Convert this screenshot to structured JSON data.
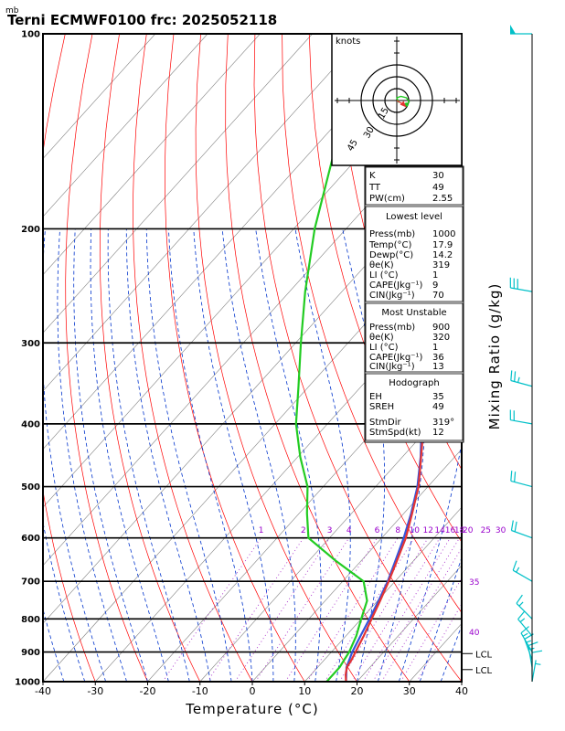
{
  "chart_data": {
    "type": "skew-t",
    "unit_label": "mb",
    "title": "Terni ECMWF0100  frc: 2025052118",
    "xlabel": "Temperature (°C)",
    "ylabel": "Mixing Ratio (g/kg)",
    "xlim": [
      -40,
      40
    ],
    "ylim": [
      1000,
      100
    ],
    "x_ticks": [
      "-40",
      "-30",
      "-20",
      "-10",
      "0",
      "10",
      "20",
      "30",
      "40"
    ],
    "pressure_ticks": [
      "100",
      "200",
      "300",
      "400",
      "500",
      "600",
      "700",
      "800",
      "900",
      "1000"
    ],
    "mixing_ratio_labels": [
      "1",
      "2",
      "3",
      "4",
      "6",
      "8",
      "10",
      "12",
      "14",
      "16",
      "18",
      "20",
      "25",
      "30"
    ],
    "right_labels": [
      "35",
      "40"
    ],
    "lcl_labels": [
      "LCL",
      "LCL"
    ],
    "parcel": [
      {
        "p": 1000,
        "t": 17.9
      },
      {
        "p": 950,
        "t": 15.5
      },
      {
        "p": 900,
        "t": 14.0
      },
      {
        "p": 850,
        "t": 12.8
      },
      {
        "p": 800,
        "t": 11.6
      },
      {
        "p": 750,
        "t": 10.2
      },
      {
        "p": 700,
        "t": 8.6
      },
      {
        "p": 650,
        "t": 6.5
      },
      {
        "p": 600,
        "t": 4.2
      },
      {
        "p": 550,
        "t": 1.4
      },
      {
        "p": 500,
        "t": -2.0
      },
      {
        "p": 450,
        "t": -6.5
      },
      {
        "p": 400,
        "t": -12.0
      },
      {
        "p": 350,
        "t": -18.5
      },
      {
        "p": 300,
        "t": -26.0
      },
      {
        "p": 250,
        "t": -35.0
      },
      {
        "p": 200,
        "t": -45.0
      },
      {
        "p": 150,
        "t": -57.0
      },
      {
        "p": 110,
        "t": -69.0
      }
    ],
    "series": [
      {
        "name": "Temperature",
        "color": "#e33333",
        "points": [
          {
            "p": 1000,
            "t": 17.9
          },
          {
            "p": 975,
            "t": 16.6
          },
          {
            "p": 950,
            "t": 15.6
          },
          {
            "p": 925,
            "t": 15.2
          },
          {
            "p": 900,
            "t": 14.6
          },
          {
            "p": 850,
            "t": 13.4
          },
          {
            "p": 800,
            "t": 12.0
          },
          {
            "p": 750,
            "t": 10.5
          },
          {
            "p": 700,
            "t": 8.8
          },
          {
            "p": 650,
            "t": 6.8
          },
          {
            "p": 600,
            "t": 4.6
          },
          {
            "p": 550,
            "t": 1.6
          },
          {
            "p": 500,
            "t": -1.8
          },
          {
            "p": 450,
            "t": -6.4
          },
          {
            "p": 400,
            "t": -11.6
          },
          {
            "p": 350,
            "t": -18.0
          },
          {
            "p": 300,
            "t": -25.4
          },
          {
            "p": 250,
            "t": -34.5
          },
          {
            "p": 225,
            "t": -38.0
          },
          {
            "p": 200,
            "t": -38.0
          },
          {
            "p": 175,
            "t": -40.0
          },
          {
            "p": 150,
            "t": -43.0
          },
          {
            "p": 125,
            "t": -46.5
          },
          {
            "p": 100,
            "t": -52.0
          }
        ]
      },
      {
        "name": "Dewpoint",
        "color": "#22cc22",
        "points": [
          {
            "p": 1000,
            "t": 14.2
          },
          {
            "p": 950,
            "t": 14.2
          },
          {
            "p": 925,
            "t": 13.8
          },
          {
            "p": 900,
            "t": 13.4
          },
          {
            "p": 850,
            "t": 12.0
          },
          {
            "p": 800,
            "t": 10.0
          },
          {
            "p": 750,
            "t": 8.0
          },
          {
            "p": 700,
            "t": 4.0
          },
          {
            "p": 650,
            "t": -5.0
          },
          {
            "p": 600,
            "t": -14.0
          },
          {
            "p": 550,
            "t": -18.5
          },
          {
            "p": 500,
            "t": -23.0
          },
          {
            "p": 450,
            "t": -29.5
          },
          {
            "p": 400,
            "t": -36.0
          },
          {
            "p": 350,
            "t": -42.0
          },
          {
            "p": 300,
            "t": -49.0
          },
          {
            "p": 250,
            "t": -57.0
          },
          {
            "p": 200,
            "t": -66.0
          },
          {
            "p": 150,
            "t": -76.0
          },
          {
            "p": 100,
            "t": -88.0
          }
        ]
      }
    ],
    "wind_barbs": [
      {
        "p": 100,
        "dir": 270,
        "spd": 50
      },
      {
        "p": 250,
        "dir": 280,
        "spd": 30
      },
      {
        "p": 350,
        "dir": 285,
        "spd": 25
      },
      {
        "p": 400,
        "dir": 280,
        "spd": 20
      },
      {
        "p": 500,
        "dir": 285,
        "spd": 20
      },
      {
        "p": 600,
        "dir": 290,
        "spd": 20
      },
      {
        "p": 700,
        "dir": 300,
        "spd": 15
      },
      {
        "p": 800,
        "dir": 315,
        "spd": 15
      },
      {
        "p": 850,
        "dir": 320,
        "spd": 15
      },
      {
        "p": 900,
        "dir": 330,
        "spd": 15
      },
      {
        "p": 925,
        "dir": 340,
        "spd": 15
      },
      {
        "p": 950,
        "dir": 350,
        "spd": 15
      },
      {
        "p": 975,
        "dir": 360,
        "spd": 10
      },
      {
        "p": 1000,
        "dir": 10,
        "spd": 5
      }
    ],
    "hodograph": {
      "units": "knots",
      "ring_labels": [
        "15",
        "30",
        "45"
      ],
      "rings": [
        15,
        30,
        45
      ],
      "trace": [
        {
          "u": 1.5,
          "v": -1.5
        },
        {
          "u": 0,
          "v": 2
        },
        {
          "u": 3,
          "v": 3
        },
        {
          "u": 7,
          "v": 2
        },
        {
          "u": 9,
          "v": -1
        },
        {
          "u": 7,
          "v": -3
        }
      ],
      "storm_vector": {
        "u": 5.0,
        "v": -3.0
      }
    }
  },
  "indices": {
    "k_label": "K",
    "k": "30",
    "tt_label": "TT",
    "tt": "49",
    "pw_label": "PW(cm)",
    "pw": "2.55",
    "lowest_header": "Lowest level",
    "low_press_label": "Press(mb)",
    "low_press": "1000",
    "low_temp_label": "Temp(°C)",
    "low_temp": "17.9",
    "low_dewp_label": "Dewp(°C)",
    "low_dewp": "14.2",
    "low_thetae_label": "θe(K)",
    "low_thetae": "319",
    "low_li_label": "LI (°C)",
    "low_li": "1",
    "low_cape_label": "CAPE(Jkg⁻¹)",
    "low_cape": "9",
    "low_cin_label": "CIN(Jkg⁻¹)",
    "low_cin": "70",
    "mu_header": "Most Unstable",
    "mu_press_label": "Press(mb)",
    "mu_press": "900",
    "mu_thetae_label": "θe(K)",
    "mu_thetae": "320",
    "mu_li_label": "LI (°C)",
    "mu_li": "1",
    "mu_cape_label": "CAPE(Jkg⁻¹)",
    "mu_cape": "36",
    "mu_cin_label": "CIN(Jkg⁻¹)",
    "mu_cin": "13",
    "hodo_header": "Hodograph",
    "eh_label": "EH",
    "eh": "35",
    "sreh_label": "SREH",
    "sreh": "49",
    "stmdir_label": "StmDir",
    "stmdir": "319°",
    "stmspd_label": "StmSpd(kt)",
    "stmspd": "12"
  },
  "colors": {
    "dry_adiabat": "#ff0000",
    "moist_adiabat": "#0033cc",
    "mixing_ratio": "#aa33cc",
    "isotherm": "#808080",
    "wind_barb": "#00c0c8",
    "parcel": "#3355dd"
  }
}
